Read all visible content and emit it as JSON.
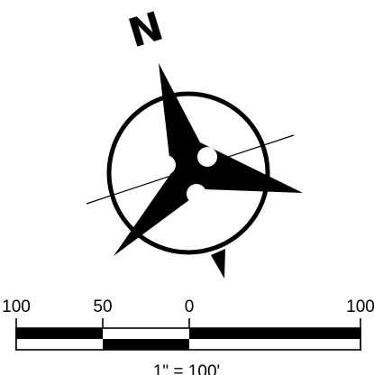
{
  "north_arrow": {
    "letter": "N",
    "fill_color": "#000000",
    "background_color": "#ffffff"
  },
  "scale_bar": {
    "labels": [
      "100",
      "50",
      "0",
      "100"
    ],
    "note": "1\" = 100'",
    "bar_color": "#000000"
  }
}
